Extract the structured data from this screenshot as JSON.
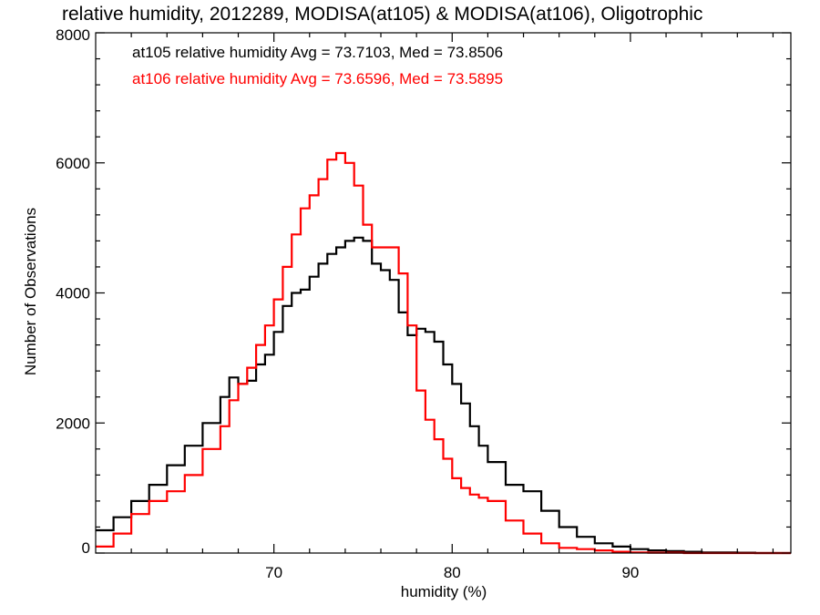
{
  "chart_data": {
    "type": "line",
    "title": "relative humidity, 2012289, MODISA(at105) & MODISA(at106), Oligotrophic",
    "xlabel": "humidity (%)",
    "ylabel": "Number of Observations",
    "xlim": [
      60,
      99
    ],
    "ylim": [
      0,
      8000
    ],
    "x_ticks": [
      70,
      80,
      90
    ],
    "y_ticks": [
      0,
      2000,
      4000,
      6000,
      8000
    ],
    "legend_placement": "top-left",
    "grid": false,
    "annotations": [
      {
        "text": "at105 relative humidity Avg = 73.7103, Med = 73.8506",
        "color": "#000000"
      },
      {
        "text": "at106 relative humidity Avg = 73.6596, Med = 73.5895",
        "color": "#ff0000"
      }
    ],
    "series": [
      {
        "color": "#000000",
        "x": [
          60,
          61,
          62,
          63,
          64,
          65,
          66,
          67,
          67.5,
          68,
          68.5,
          69,
          69.5,
          70,
          70.5,
          71,
          71.5,
          72,
          72.5,
          73,
          73.5,
          74,
          74.5,
          75,
          75.5,
          76,
          76.5,
          77,
          77.5,
          78,
          78.5,
          79,
          79.5,
          80,
          80.5,
          81,
          81.5,
          82,
          83,
          84,
          85,
          86,
          87,
          88,
          89,
          90,
          91,
          92,
          93,
          94,
          95,
          96,
          97,
          98,
          99
        ],
        "values": [
          350,
          550,
          800,
          1050,
          1350,
          1650,
          2000,
          2400,
          2700,
          2600,
          2650,
          2900,
          3050,
          3400,
          3800,
          4000,
          4050,
          4250,
          4450,
          4600,
          4700,
          4800,
          4850,
          4800,
          4450,
          4350,
          4200,
          3700,
          3350,
          3450,
          3400,
          3250,
          2900,
          2600,
          2300,
          1950,
          1650,
          1400,
          1050,
          950,
          650,
          400,
          250,
          150,
          100,
          60,
          40,
          30,
          20,
          10,
          10,
          5,
          0,
          0,
          0
        ]
      },
      {
        "color": "#ff0000",
        "x": [
          60,
          61,
          62,
          63,
          64,
          65,
          66,
          67,
          67.5,
          68,
          68.5,
          69,
          69.5,
          70,
          70.5,
          71,
          71.5,
          72,
          72.5,
          73,
          73.5,
          74,
          74.5,
          75,
          75.5,
          76,
          76.5,
          77,
          77.5,
          78,
          78.5,
          79,
          79.5,
          80,
          80.5,
          81,
          81.5,
          82,
          83,
          84,
          85,
          86,
          87,
          88,
          89,
          90,
          91,
          92,
          93,
          94,
          95,
          96,
          97,
          98,
          99
        ],
        "values": [
          100,
          300,
          600,
          800,
          950,
          1200,
          1600,
          1950,
          2350,
          2600,
          2850,
          3200,
          3500,
          3900,
          4400,
          4900,
          5300,
          5500,
          5750,
          6050,
          6150,
          6000,
          5650,
          5050,
          4700,
          4700,
          4700,
          4300,
          3500,
          2500,
          2050,
          1750,
          1450,
          1150,
          1000,
          900,
          850,
          800,
          500,
          300,
          150,
          80,
          60,
          40,
          20,
          10,
          5,
          5,
          0,
          0,
          0,
          0,
          0,
          0,
          0
        ]
      }
    ]
  }
}
